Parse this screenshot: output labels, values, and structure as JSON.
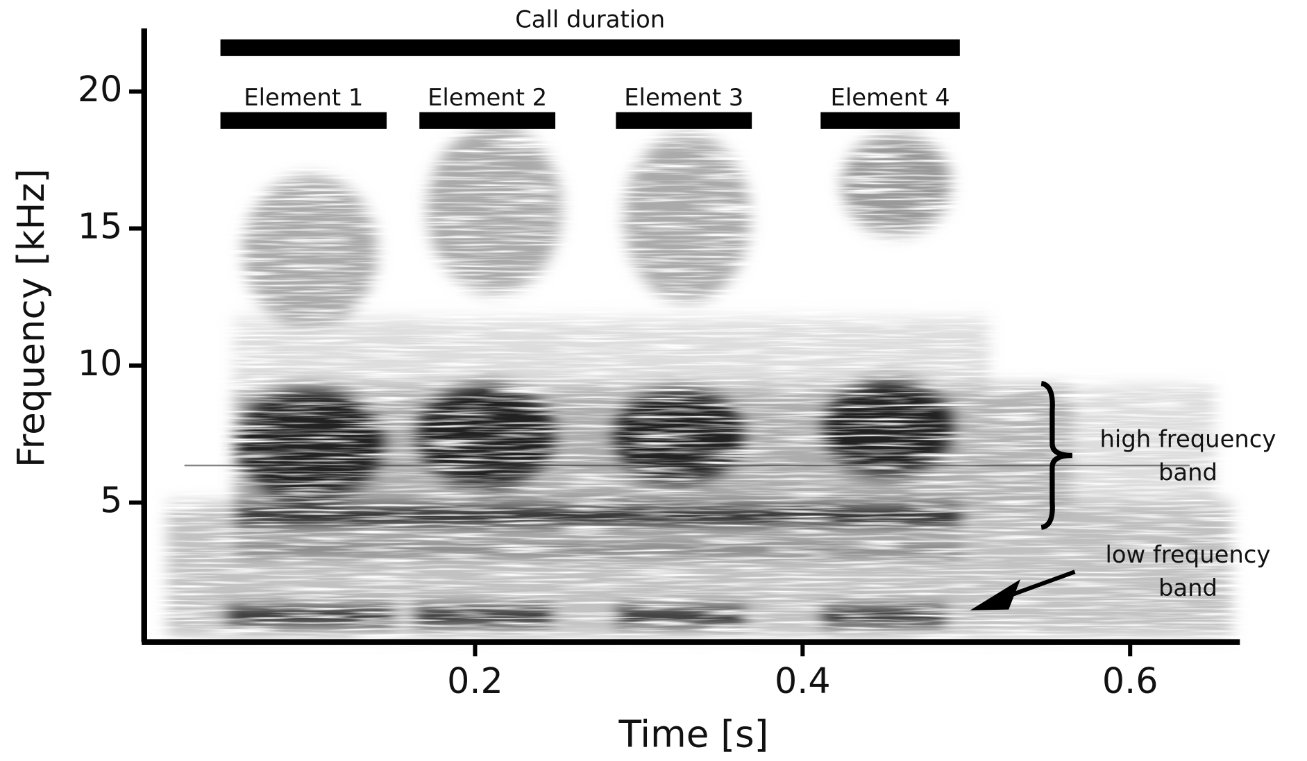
{
  "chart_data": {
    "type": "spectrogram",
    "x_label": "Time [s]",
    "y_label": "Frequency [kHz]",
    "xlim": [
      0,
      0.667
    ],
    "ylim": [
      0,
      22.3
    ],
    "xticks": [
      0.2,
      0.4,
      0.6
    ],
    "yticks": [
      5,
      10,
      15,
      20
    ],
    "spans": [
      {
        "label": "Call duration",
        "start": 0.0445,
        "end": 0.496
      },
      {
        "label": "Element 1",
        "start": 0.0445,
        "end": 0.146
      },
      {
        "label": "Element 2",
        "start": 0.166,
        "end": 0.249
      },
      {
        "label": "Element 3",
        "start": 0.286,
        "end": 0.369
      },
      {
        "label": "Element 4",
        "start": 0.411,
        "end": 0.496
      }
    ],
    "annotations": [
      {
        "lines": [
          "high frequency",
          "band"
        ]
      },
      {
        "lines": [
          "low frequency",
          "band"
        ]
      }
    ]
  }
}
